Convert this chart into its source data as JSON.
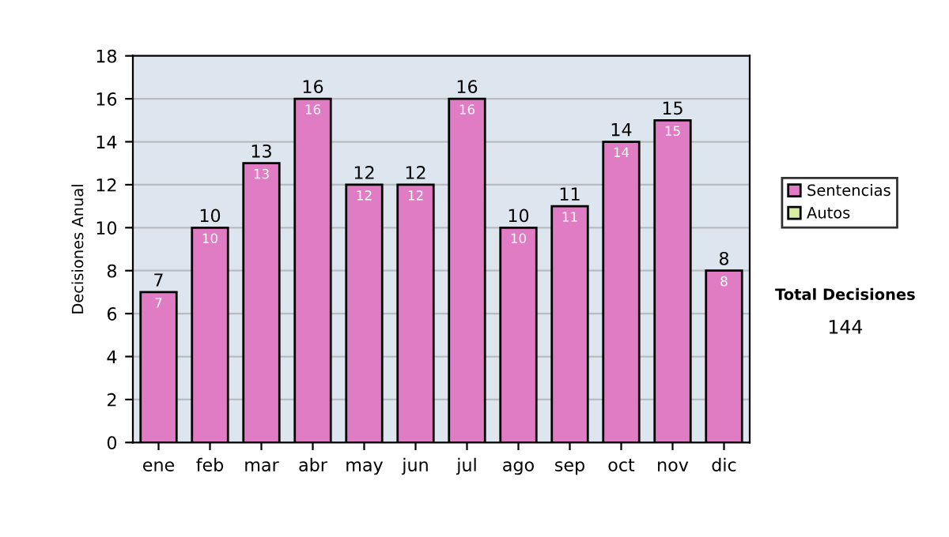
{
  "chart_data": {
    "type": "bar",
    "ylabel": "Decisiones Anual",
    "categories": [
      "ene",
      "feb",
      "mar",
      "abr",
      "may",
      "jun",
      "jul",
      "ago",
      "sep",
      "oct",
      "nov",
      "dic"
    ],
    "series": [
      {
        "name": "Sentencias",
        "color": "#e07cc4",
        "values": [
          7,
          10,
          13,
          16,
          12,
          12,
          16,
          10,
          11,
          14,
          15,
          8
        ],
        "value_labels": [
          "7",
          "10",
          "13",
          "16",
          "12",
          "12",
          "16",
          "10",
          "11",
          "14",
          "15",
          "8"
        ]
      },
      {
        "name": "Autos",
        "color": "#d9eca6",
        "values": [
          null,
          null,
          null,
          null,
          null,
          null,
          null,
          null,
          null,
          null,
          null,
          null
        ]
      }
    ],
    "stacked": true,
    "totals": [
      "7",
      "10",
      "13",
      "16",
      "12",
      "12",
      "16",
      "10",
      "11",
      "14",
      "15",
      "8"
    ],
    "ylim": [
      0,
      18
    ],
    "yticks": [
      0,
      2,
      4,
      6,
      8,
      10,
      12,
      14,
      16,
      18
    ],
    "grid": "y",
    "legend": "right",
    "annotations": [
      "Total Decisiones",
      "144"
    ]
  }
}
